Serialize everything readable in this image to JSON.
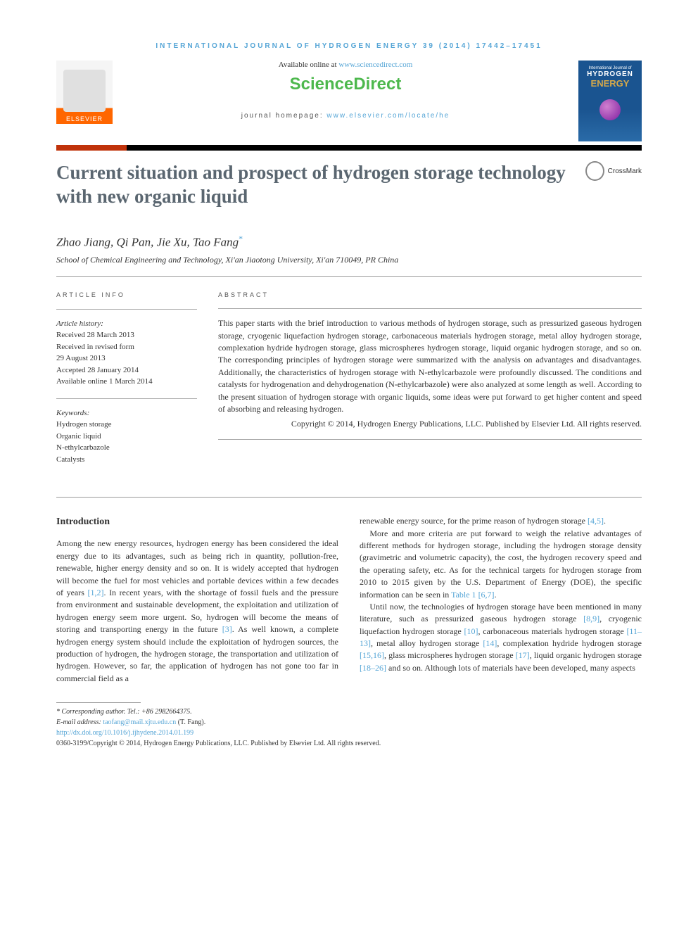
{
  "journal_header": "INTERNATIONAL JOURNAL OF HYDROGEN ENERGY 39 (2014) 17442–17451",
  "available_text": "Available online at ",
  "available_link": "www.sciencedirect.com",
  "sciencedirect": "ScienceDirect",
  "homepage_label": "journal homepage: ",
  "homepage_url": "www.elsevier.com/locate/he",
  "elsevier_brand": "ELSEVIER",
  "cover": {
    "line1": "International Journal of",
    "line2": "HYDROGEN",
    "line3": "ENERGY"
  },
  "title": "Current situation and prospect of hydrogen storage technology with new organic liquid",
  "crossmark": "CrossMark",
  "authors": "Zhao Jiang, Qi Pan, Jie Xu, Tao Fang",
  "affiliation": "School of Chemical Engineering and Technology, Xi'an Jiaotong University, Xi'an 710049, PR China",
  "info_label": "ARTICLE INFO",
  "abstract_label": "ABSTRACT",
  "history": {
    "heading": "Article history:",
    "received": "Received 28 March 2013",
    "revised1": "Received in revised form",
    "revised2": "29 August 2013",
    "accepted": "Accepted 28 January 2014",
    "online": "Available online 1 March 2014"
  },
  "keywords": {
    "heading": "Keywords:",
    "k1": "Hydrogen storage",
    "k2": "Organic liquid",
    "k3": "N-ethylcarbazole",
    "k4": "Catalysts"
  },
  "abstract": "This paper starts with the brief introduction to various methods of hydrogen storage, such as pressurized gaseous hydrogen storage, cryogenic liquefaction hydrogen storage, carbonaceous materials hydrogen storage, metal alloy hydrogen storage, complexation hydride hydrogen storage, glass microspheres hydrogen storage, liquid organic hydrogen storage, and so on. The corresponding principles of hydrogen storage were summarized with the analysis on advantages and disadvantages. Additionally, the characteristics of hydrogen storage with N-ethylcarbazole were profoundly discussed. The conditions and catalysts for hydrogenation and dehydrogenation (N-ethylcarbazole) were also analyzed at some length as well. According to the present situation of hydrogen storage with organic liquids, some ideas were put forward to get higher content and speed of absorbing and releasing hydrogen.",
  "copyright": "Copyright © 2014, Hydrogen Energy Publications, LLC. Published by Elsevier Ltd. All rights reserved.",
  "intro_heading": "Introduction",
  "col1_p1a": "Among the new energy resources, hydrogen energy has been considered the ideal energy due to its advantages, such as being rich in quantity, pollution-free, renewable, higher energy density and so on. It is widely accepted that hydrogen will become the fuel for most vehicles and portable devices within a few decades of years ",
  "col1_ref1": "[1,2]",
  "col1_p1b": ". In recent years, with the shortage of fossil fuels and the pressure from environment and sustainable development, the exploitation and utilization of hydrogen energy seem more urgent. So, hydrogen will become the means of storing and transporting energy in the future ",
  "col1_ref2": "[3]",
  "col1_p1c": ". As well known, a complete hydrogen energy system should include the exploitation of hydrogen sources, the production of hydrogen, the hydrogen storage, the transportation and utilization of hydrogen. However, so far, the application of hydrogen has not gone too far in commercial field as a",
  "col2_p1a": "renewable energy source, for the prime reason of hydrogen storage ",
  "col2_ref1": "[4,5]",
  "col2_p1b": ".",
  "col2_p2a": "More and more criteria are put forward to weigh the relative advantages of different methods for hydrogen storage, including the hydrogen storage density (gravimetric and volumetric capacity), the cost, the hydrogen recovery speed and the operating safety, etc. As for the technical targets for hydrogen storage from 2010 to 2015 given by the U.S. Department of Energy (DOE), the specific information can be seen in ",
  "col2_ref2": "Table 1",
  "col2_p2b": " ",
  "col2_ref3": "[6,7]",
  "col2_p2c": ".",
  "col2_p3a": "Until now, the technologies of hydrogen storage have been mentioned in many literature, such as pressurized gaseous hydrogen storage ",
  "col2_ref4": "[8,9]",
  "col2_p3b": ", cryogenic liquefaction hydrogen storage ",
  "col2_ref5": "[10]",
  "col2_p3c": ", carbonaceous materials hydrogen storage ",
  "col2_ref6": "[11–13]",
  "col2_p3d": ", metal alloy hydrogen storage ",
  "col2_ref7": "[14]",
  "col2_p3e": ", complexation hydride hydrogen storage ",
  "col2_ref8": "[15,16]",
  "col2_p3f": ", glass microspheres hydrogen storage ",
  "col2_ref9": "[17]",
  "col2_p3g": ", liquid organic hydrogen storage ",
  "col2_ref10": "[18–26]",
  "col2_p3h": " and so on. Although lots of materials have been developed, many aspects",
  "footer": {
    "corr": "* Corresponding author. Tel.: +86 2982664375.",
    "email_label": "E-mail address: ",
    "email": "taofang@mail.xjtu.edu.cn",
    "email_suffix": " (T. Fang).",
    "doi": "http://dx.doi.org/10.1016/j.ijhydene.2014.01.199",
    "issn": "0360-3199/Copyright © 2014, Hydrogen Energy Publications, LLC. Published by Elsevier Ltd. All rights reserved."
  },
  "colors": {
    "link": "#55a5d6",
    "heading": "#5a6670",
    "sciencedirect_green": "#4db84d",
    "elsevier_orange": "#ff6600",
    "bar_red": "#c0320a"
  }
}
